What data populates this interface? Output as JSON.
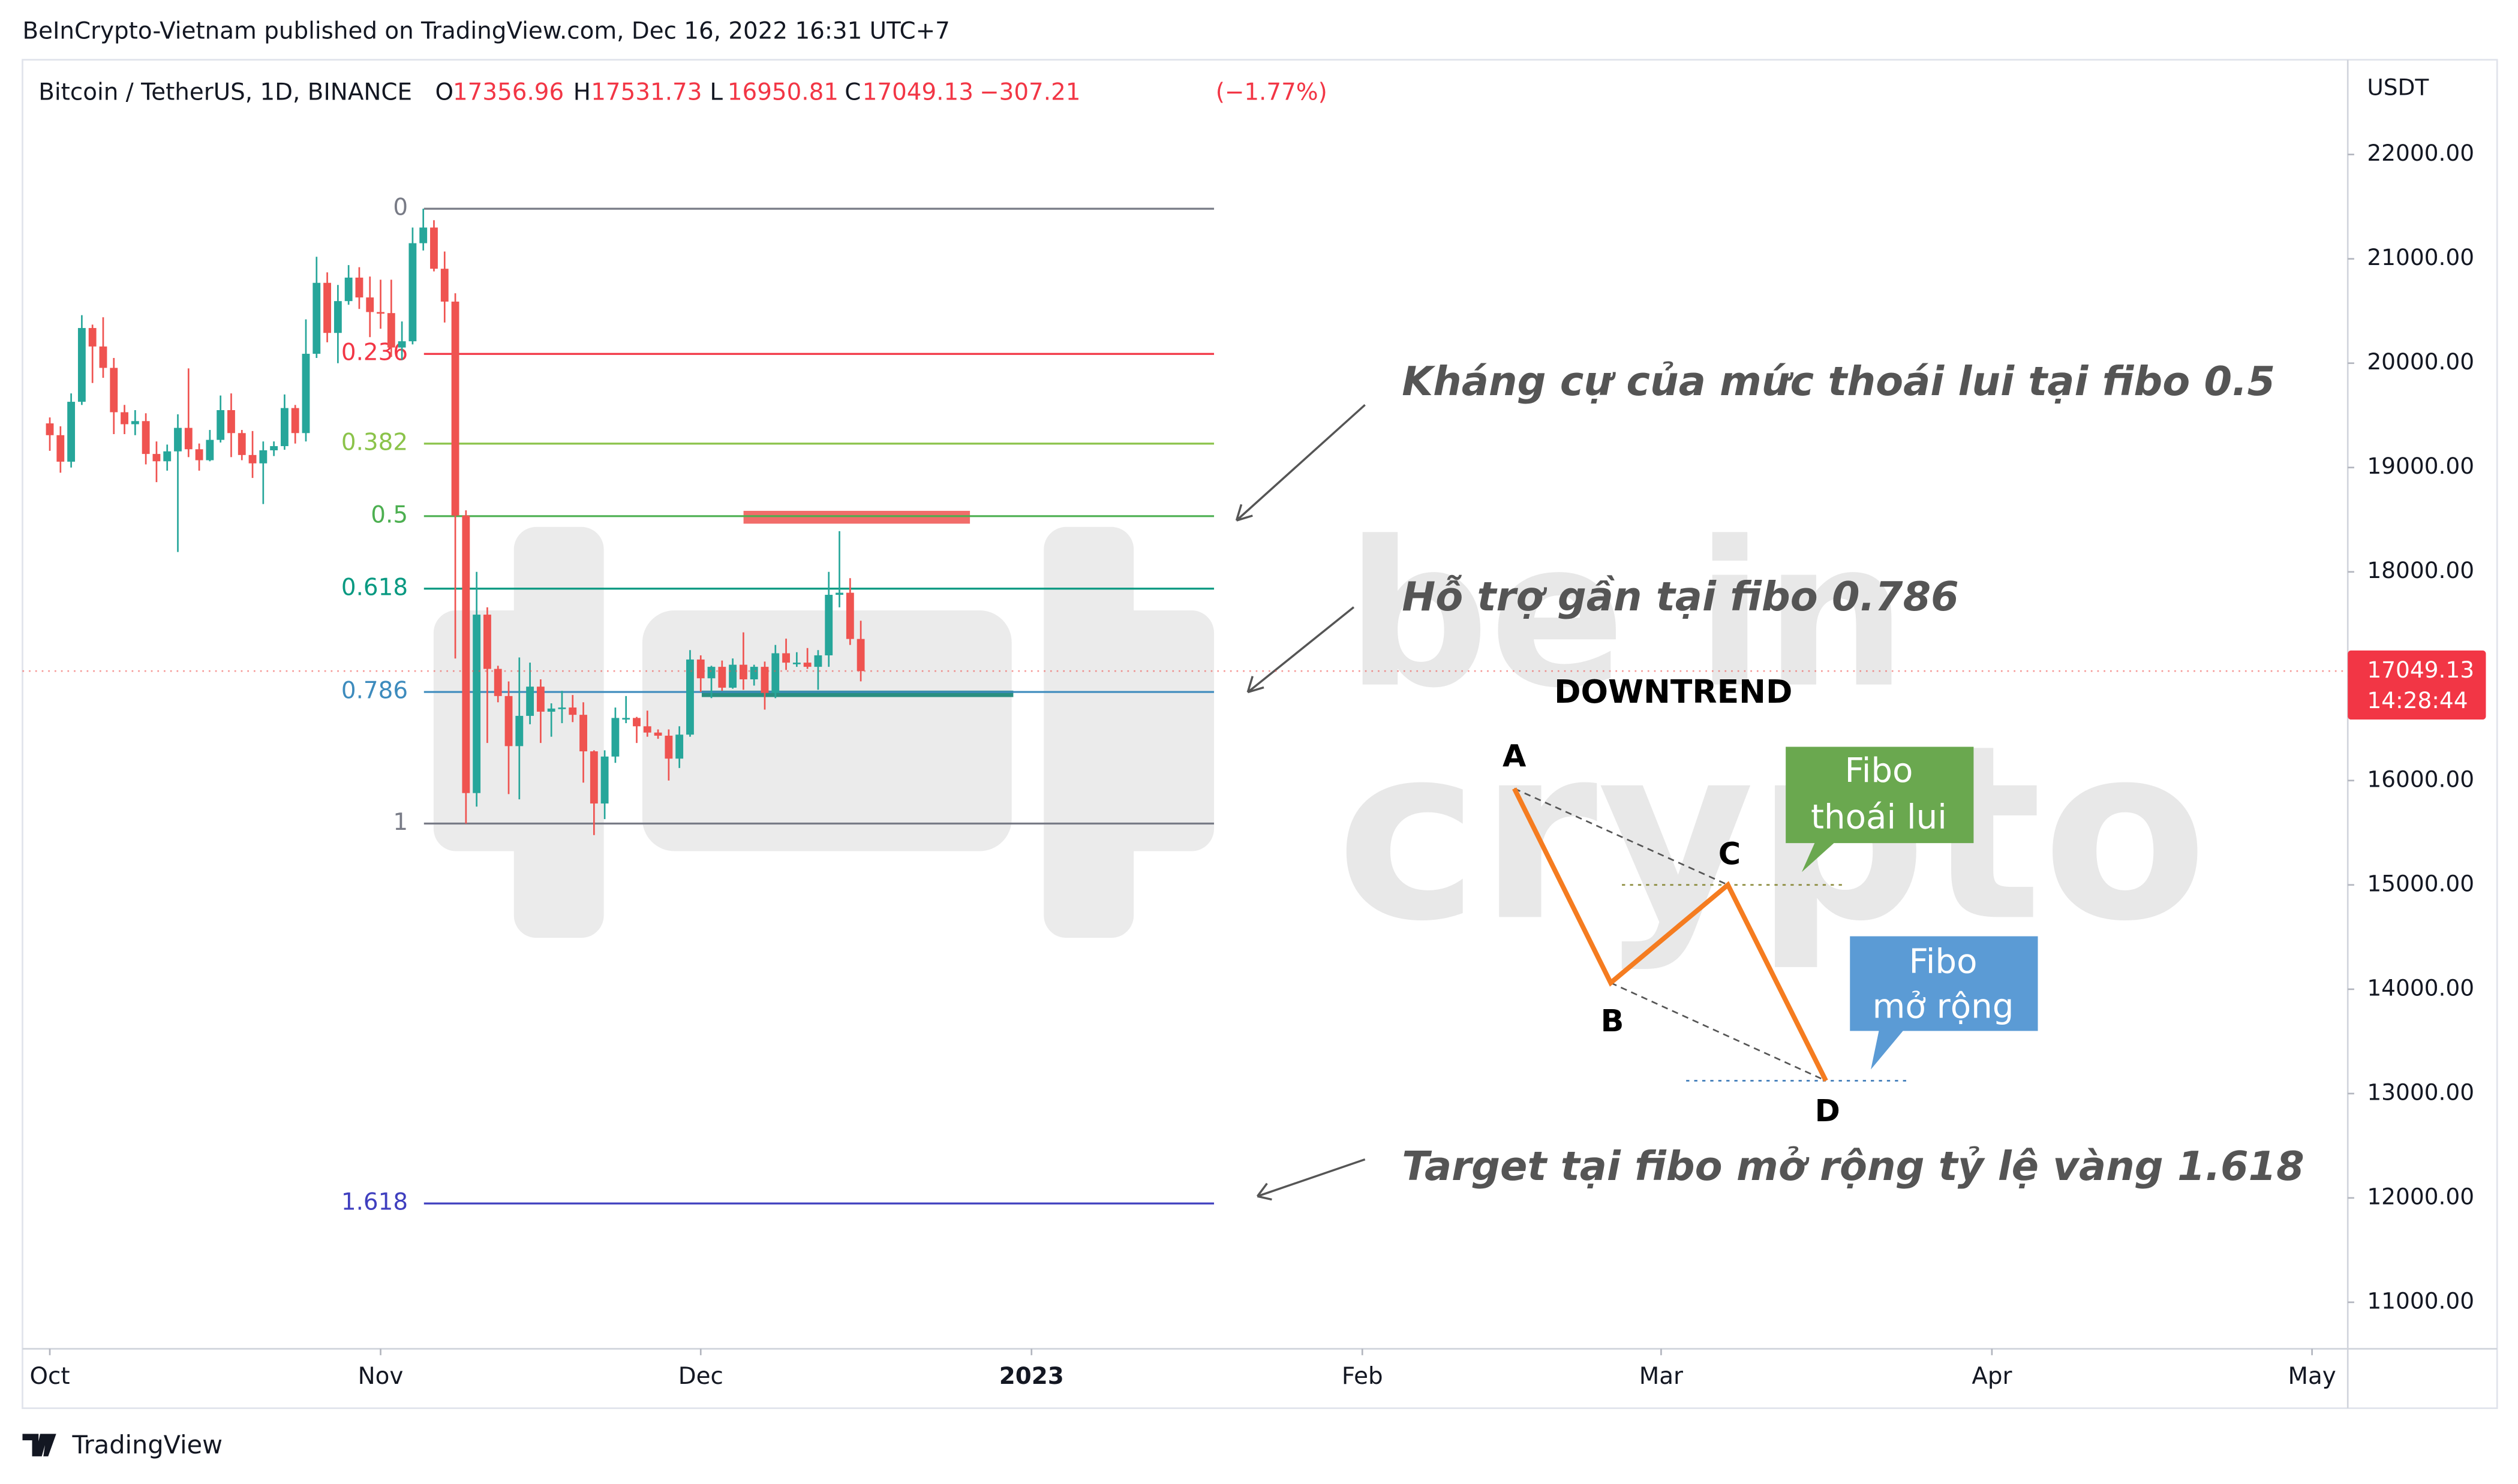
{
  "header": {
    "text": "BeInCrypto-Vietnam published on TradingView.com, Dec 16, 2022 16:31 UTC+7"
  },
  "footer": {
    "brand": "TradingView"
  },
  "chart_data": {
    "type": "candlestick",
    "title": "Bitcoin / TetherUS, 1D, BINANCE",
    "legend_prefixes": [
      "O",
      "H",
      "L",
      "C"
    ],
    "change": {
      "value": -307.21,
      "label": "−307.21"
    },
    "change_pct": {
      "value": -1.77,
      "label": "(−1.77%)"
    },
    "y_unit": "USDT",
    "last_price_timer": "14:28:44",
    "up_color": "#26a69a",
    "down_color": "#ef5350",
    "ylim": [
      10554,
      22908
    ],
    "xlim": [
      -2.56,
      215.35
    ],
    "yticks": [
      {
        "value": 11000,
        "label": "11000.00"
      },
      {
        "value": 12000,
        "label": "12000.00"
      },
      {
        "value": 13000,
        "label": "13000.00"
      },
      {
        "value": 14000,
        "label": "14000.00"
      },
      {
        "value": 15000,
        "label": "15000.00"
      },
      {
        "value": 16000,
        "label": "16000.00"
      },
      {
        "value": 17000,
        "label": "17000.00"
      },
      {
        "value": 18000,
        "label": "18000.00"
      },
      {
        "value": 19000,
        "label": "19000.00"
      },
      {
        "value": 20000,
        "label": "20000.00"
      },
      {
        "value": 21000,
        "label": "21000.00"
      },
      {
        "value": 22000,
        "label": "22000.00"
      }
    ],
    "xticks": [
      {
        "value": 0,
        "label": "Oct"
      },
      {
        "value": 31,
        "label": "Nov"
      },
      {
        "value": 61,
        "label": "Dec"
      },
      {
        "value": 92,
        "label": "2023"
      },
      {
        "value": 123,
        "label": "Feb"
      },
      {
        "value": 151,
        "label": "Mar"
      },
      {
        "value": 182,
        "label": "Apr"
      },
      {
        "value": 212,
        "label": "May"
      }
    ],
    "open": [
      19423,
      19310,
      19056,
      19630,
      20337,
      20160,
      19955,
      19530,
      19415,
      19445,
      19130,
      19060,
      19155,
      19380,
      19175,
      19070,
      19265,
      19550,
      19330,
      19120,
      19040,
      19165,
      19205,
      19570,
      19330,
      20090,
      20770,
      20290,
      20595,
      20820,
      20630,
      20490,
      20480,
      20150,
      20210,
      21150,
      21300,
      20905,
      20590,
      18540,
      15880,
      17590,
      17070,
      16810,
      16330,
      16620,
      16900,
      16660,
      16690,
      16700,
      16630,
      16280,
      15780,
      16230,
      16600,
      16600,
      16520,
      16460,
      16430,
      16210,
      16440,
      17160,
      16980,
      17090,
      16890,
      17110,
      16970,
      17090,
      16840,
      17220,
      17130,
      17130,
      17090,
      17200,
      17780,
      17800,
      17356.96
    ],
    "high": [
      19480,
      19395,
      19710,
      20460,
      20370,
      20440,
      20050,
      19600,
      19550,
      19520,
      19250,
      19220,
      19510,
      19950,
      19230,
      19360,
      19690,
      19710,
      19360,
      19350,
      19250,
      19250,
      19700,
      19600,
      20420,
      21020,
      20870,
      20750,
      20940,
      20920,
      20830,
      20800,
      20800,
      20400,
      21300,
      21480,
      21370,
      21070,
      20670,
      18590,
      18000,
      17660,
      17100,
      16950,
      17180,
      17130,
      16970,
      16740,
      16860,
      16820,
      16750,
      16290,
      16290,
      16700,
      16810,
      16610,
      16670,
      16490,
      16490,
      16520,
      17250,
      17200,
      17100,
      17150,
      17170,
      17420,
      17110,
      17140,
      17300,
      17360,
      17230,
      17270,
      17250,
      18000,
      18390,
      17940,
      17531.73
    ],
    "low": [
      19160,
      18950,
      19000,
      19600,
      19810,
      19860,
      19320,
      19320,
      19310,
      19030,
      18860,
      18970,
      18190,
      19100,
      18970,
      19060,
      19240,
      19100,
      19070,
      18900,
      18650,
      19110,
      19170,
      19230,
      19250,
      20050,
      20200,
      20000,
      20560,
      20520,
      20250,
      20330,
      20060,
      20030,
      20180,
      21080,
      20880,
      20390,
      17170,
      15588,
      15750,
      16360,
      16750,
      15870,
      15820,
      16540,
      16360,
      16420,
      16550,
      16560,
      15980,
      15477,
      15630,
      16170,
      16550,
      16360,
      16420,
      16400,
      16000,
      16120,
      16420,
      16850,
      16790,
      16860,
      16880,
      16870,
      16910,
      16680,
      16790,
      17060,
      17090,
      17070,
      16870,
      17090,
      17660,
      17300,
      16950.81
    ],
    "close": [
      19310,
      19056,
      19630,
      20337,
      20160,
      19955,
      19530,
      19415,
      19445,
      19130,
      19060,
      19155,
      19380,
      19175,
      19070,
      19265,
      19550,
      19330,
      19120,
      19040,
      19165,
      19205,
      19570,
      19330,
      20090,
      20770,
      20290,
      20595,
      20820,
      20630,
      20490,
      20480,
      20150,
      20210,
      21150,
      21300,
      20905,
      20590,
      18540,
      15880,
      17590,
      17070,
      16810,
      16330,
      16620,
      16900,
      16660,
      16690,
      16700,
      16630,
      16280,
      15780,
      16230,
      16600,
      16600,
      16520,
      16460,
      16430,
      16210,
      16440,
      17160,
      16980,
      17090,
      16890,
      17110,
      16970,
      17090,
      16840,
      17220,
      17130,
      17130,
      17090,
      17200,
      17780,
      17800,
      17356.96,
      17049.13
    ],
    "fib": {
      "levels": [
        0,
        0.236,
        0.382,
        0.5,
        0.618,
        0.786,
        1,
        1.618
      ],
      "prices": [
        21480,
        20089,
        19229,
        18534,
        17839,
        16849,
        15588,
        11947
      ],
      "colors": [
        "#787b86",
        "#f23645",
        "#8bc34a",
        "#4caf50",
        "#089981",
        "#3d8bbd",
        "#787b86",
        "#3f3fbf"
      ]
    },
    "annotations": [
      "Kháng cự của mức thoái lui tại fibo 0.5",
      "Hỗ trợ gần tại fibo 0.786",
      "Target tại fibo mở rộng tỷ lệ vàng 1.618"
    ],
    "watermark": [
      "be in",
      "crypto"
    ],
    "pattern": {
      "title": "DOWNTREND",
      "points": [
        "A",
        "B",
        "C",
        "D"
      ],
      "callouts": [
        [
          "Fibo",
          "thoái lui"
        ],
        [
          "Fibo",
          "mở rộng"
        ]
      ]
    }
  }
}
